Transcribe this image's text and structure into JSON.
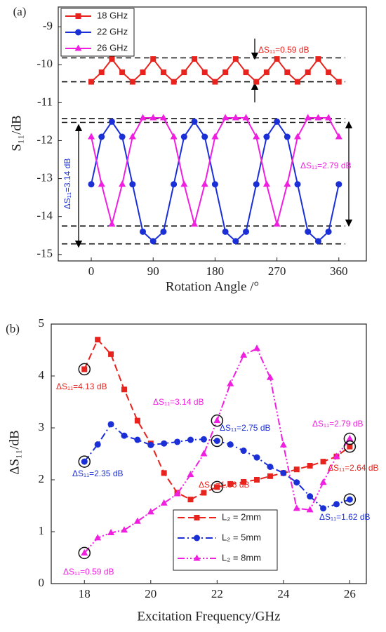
{
  "chart_data": [
    {
      "type": "line",
      "panel_label": "(a)",
      "xlabel": "Rotation Angle /°",
      "ylabel": "S₁₁/dB",
      "x": [
        0,
        15,
        30,
        45,
        60,
        75,
        90,
        105,
        120,
        135,
        150,
        165,
        180,
        195,
        210,
        225,
        240,
        255,
        270,
        285,
        300,
        315,
        330,
        345,
        360
      ],
      "xlim": [
        -48,
        400
      ],
      "ylim": [
        -15.17,
        -8.48
      ],
      "xticks": [
        0,
        90,
        180,
        270,
        360
      ],
      "yticks": [
        -9,
        -10,
        -11,
        -12,
        -13,
        -14,
        -15
      ],
      "series": [
        {
          "name": "18 GHz",
          "color": "#e8231d",
          "marker": "square",
          "values": [
            -10.45,
            -10.2,
            -9.85,
            -10.2,
            -10.45,
            -10.2,
            -9.85,
            -10.2,
            -10.45,
            -10.2,
            -9.85,
            -10.2,
            -10.45,
            -10.2,
            -9.85,
            -10.2,
            -10.45,
            -10.2,
            -9.85,
            -10.2,
            -10.45,
            -10.2,
            -9.85,
            -10.2,
            -10.45
          ]
        },
        {
          "name": "22 GHz",
          "color": "#1b2fd6",
          "marker": "circle",
          "values": [
            -13.15,
            -11.9,
            -11.5,
            -11.9,
            -13.15,
            -14.4,
            -14.65,
            -14.4,
            -13.15,
            -11.9,
            -11.5,
            -11.9,
            -13.15,
            -14.4,
            -14.65,
            -14.4,
            -13.15,
            -11.9,
            -11.5,
            -11.9,
            -13.15,
            -14.4,
            -14.65,
            -14.4,
            -13.15
          ]
        },
        {
          "name": "26 GHz",
          "color": "#f01fe0",
          "marker": "triangle",
          "values": [
            -11.9,
            -13.15,
            -14.2,
            -13.15,
            -11.9,
            -11.4,
            -11.4,
            -11.4,
            -11.9,
            -13.15,
            -14.2,
            -13.15,
            -11.9,
            -11.4,
            -11.4,
            -11.4,
            -11.9,
            -13.15,
            -14.2,
            -13.15,
            -11.9,
            -11.4,
            -11.4,
            -11.4,
            -11.9
          ]
        }
      ],
      "reference_lines": [
        -9.82,
        -10.45,
        -11.42,
        -11.52,
        -14.25,
        -14.72
      ],
      "annotations": [
        {
          "text": "ΔS₁₁=0.59 dB",
          "color": "#e8231d"
        },
        {
          "text": "ΔS₁₁=3.14 dB",
          "color": "#1b2fd6"
        },
        {
          "text": "ΔS₁₁=2.79 dB",
          "color": "#f01fe0"
        }
      ]
    },
    {
      "type": "line",
      "panel_label": "(b)",
      "xlabel": "Excitation Frequency/GHz",
      "ylabel": "ΔS₁₁/dB",
      "x": [
        18,
        18.4,
        18.8,
        19.2,
        19.6,
        20,
        20.4,
        20.8,
        21.2,
        21.6,
        22,
        22.4,
        22.8,
        23.2,
        23.6,
        24,
        24.4,
        24.8,
        25.2,
        25.6,
        26
      ],
      "xlim": [
        17,
        26.5
      ],
      "ylim": [
        0,
        5
      ],
      "xticks": [
        18,
        20,
        22,
        24,
        26
      ],
      "yticks": [
        0,
        1,
        2,
        3,
        4,
        5
      ],
      "series": [
        {
          "name": "L₂ = 2mm",
          "color": "#e8231d",
          "marker": "square",
          "dash": "10,5",
          "values": [
            4.13,
            4.7,
            4.42,
            3.74,
            3.14,
            2.7,
            2.13,
            1.75,
            1.62,
            1.75,
            1.86,
            1.92,
            1.96,
            2.0,
            2.07,
            2.13,
            2.2,
            2.27,
            2.35,
            2.45,
            2.64
          ]
        },
        {
          "name": "L₂ = 5mm",
          "color": "#1b2fd6",
          "marker": "circle",
          "dash": "10,4,2,4",
          "values": [
            2.35,
            2.68,
            3.07,
            2.85,
            2.77,
            2.67,
            2.7,
            2.73,
            2.77,
            2.78,
            2.75,
            2.68,
            2.56,
            2.43,
            2.25,
            2.13,
            1.95,
            1.68,
            1.45,
            1.53,
            1.62
          ]
        },
        {
          "name": "L₂ = 8mm",
          "color": "#f01fe0",
          "marker": "triangle",
          "dash": "10,3,2,3,2,3",
          "values": [
            0.59,
            0.88,
            0.98,
            1.03,
            1.2,
            1.38,
            1.55,
            1.73,
            2.1,
            2.5,
            3.14,
            3.85,
            4.4,
            4.53,
            3.97,
            2.67,
            1.45,
            1.42,
            1.95,
            2.45,
            2.79
          ]
        }
      ],
      "annotations": [
        {
          "text": "ΔS₁₁=4.13 dB",
          "color": "#e8231d"
        },
        {
          "text": "ΔS₁₁=3.14 dB",
          "color": "#f01fe0"
        },
        {
          "text": "ΔS₁₁=2.75 dB",
          "color": "#1b2fd6"
        },
        {
          "text": "ΔS₁₁=2.79 dB",
          "color": "#f01fe0"
        },
        {
          "text": "ΔS₁₁=2.35 dB",
          "color": "#1b2fd6"
        },
        {
          "text": "ΔS₁₁=1.86 dB",
          "color": "#e8231d"
        },
        {
          "text": "ΔS₁₁=2.64 dB",
          "color": "#e8231d"
        },
        {
          "text": "ΔS₁₁=1.62 dB",
          "color": "#1b2fd6"
        },
        {
          "text": "ΔS₁₁=0.59 dB",
          "color": "#f01fe0"
        }
      ]
    }
  ]
}
